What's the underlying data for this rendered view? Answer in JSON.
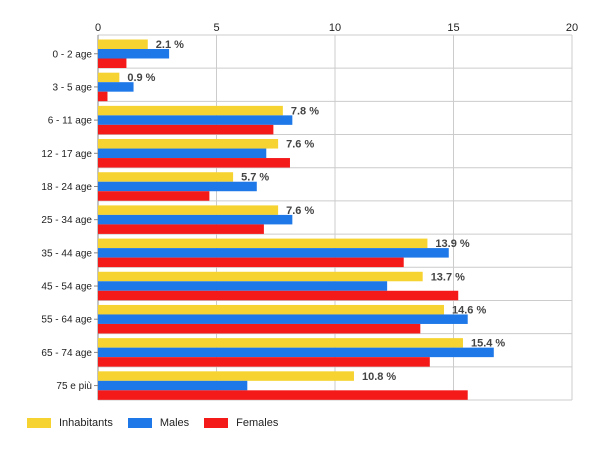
{
  "chart_data": {
    "type": "bar",
    "orientation": "horizontal",
    "categories": [
      "0 - 2 age",
      "3 - 5 age",
      "6 - 11 age",
      "12 - 17 age",
      "18 - 24 age",
      "25 - 34 age",
      "35 - 44 age",
      "45 - 54 age",
      "55 - 64 age",
      "65 - 74 age",
      "75 e più"
    ],
    "series": [
      {
        "name": "Inhabitants",
        "color": "#f6d330",
        "values": [
          2.1,
          0.9,
          7.8,
          7.6,
          5.7,
          7.6,
          13.9,
          13.7,
          14.6,
          15.4,
          10.8
        ]
      },
      {
        "name": "Males",
        "color": "#1f78e8",
        "values": [
          3.0,
          1.5,
          8.2,
          7.1,
          6.7,
          8.2,
          14.8,
          12.2,
          15.6,
          16.7,
          6.3
        ]
      },
      {
        "name": "Females",
        "color": "#f41a1a",
        "values": [
          1.2,
          0.4,
          7.4,
          8.1,
          4.7,
          7.0,
          12.9,
          15.2,
          13.6,
          14.0,
          15.6
        ]
      }
    ],
    "data_labels": [
      "2.1 %",
      "0.9 %",
      "7.8 %",
      "7.6 %",
      "5.7 %",
      "7.6 %",
      "13.9 %",
      "13.7 %",
      "14.6 %",
      "15.4 %",
      "10.8 %"
    ],
    "x_ticks": [
      "0",
      "5",
      "10",
      "15",
      "20"
    ],
    "xlim": [
      0,
      20
    ],
    "grid": true,
    "legend_position": "bottom-left"
  },
  "legend": {
    "inhabitants": "Inhabitants",
    "males": "Males",
    "females": "Females"
  }
}
